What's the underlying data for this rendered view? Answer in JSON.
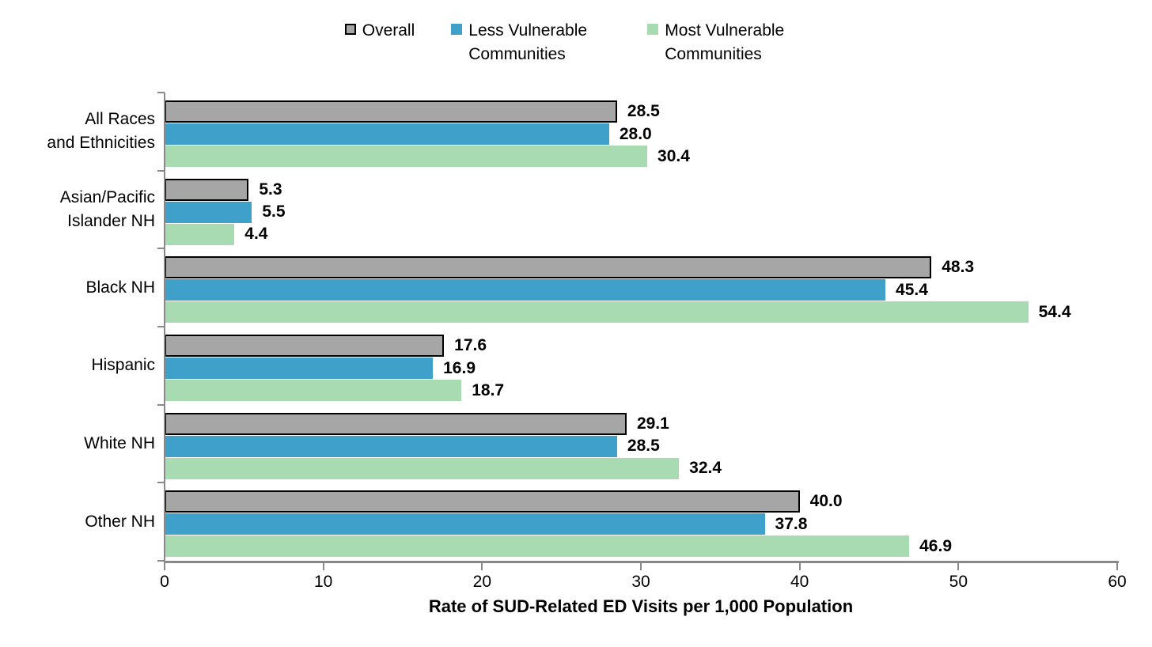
{
  "chart_data": {
    "type": "bar",
    "orientation": "horizontal",
    "title": "",
    "xlabel": "Rate of SUD-Related ED Visits per 1,000 Population",
    "ylabel": "",
    "xlim": [
      0,
      60
    ],
    "x_ticks": [
      0,
      10,
      20,
      30,
      40,
      50,
      60
    ],
    "grid": false,
    "legend_position": "top-center",
    "categories": [
      "All Races and Ethnicities",
      "Asian/Pacific Islander NH",
      "Black NH",
      "Hispanic",
      "White NH",
      "Other NH"
    ],
    "category_label_lines": [
      [
        "All Races",
        "and Ethnicities"
      ],
      [
        "Asian/Pacific",
        "Islander NH"
      ],
      [
        "Black NH"
      ],
      [
        "Hispanic"
      ],
      [
        "White NH"
      ],
      [
        "Other NH"
      ]
    ],
    "series": [
      {
        "name": "Overall",
        "color": "#A6A6A6",
        "border_color": "#000000",
        "values": [
          28.5,
          5.3,
          48.3,
          17.6,
          29.1,
          40.0
        ]
      },
      {
        "name": "Less Vulnerable Communities",
        "color": "#3FA0C9",
        "values": [
          28.0,
          5.5,
          45.4,
          16.9,
          28.5,
          37.8
        ]
      },
      {
        "name": "Most Vulnerable Communities",
        "color": "#A8DBB2",
        "values": [
          30.4,
          4.4,
          54.4,
          18.7,
          32.4,
          46.9
        ]
      }
    ],
    "value_label_decimals": 1,
    "colors": {
      "axis": "#898989",
      "text": "#000000",
      "background": "#FFFFFF"
    }
  }
}
